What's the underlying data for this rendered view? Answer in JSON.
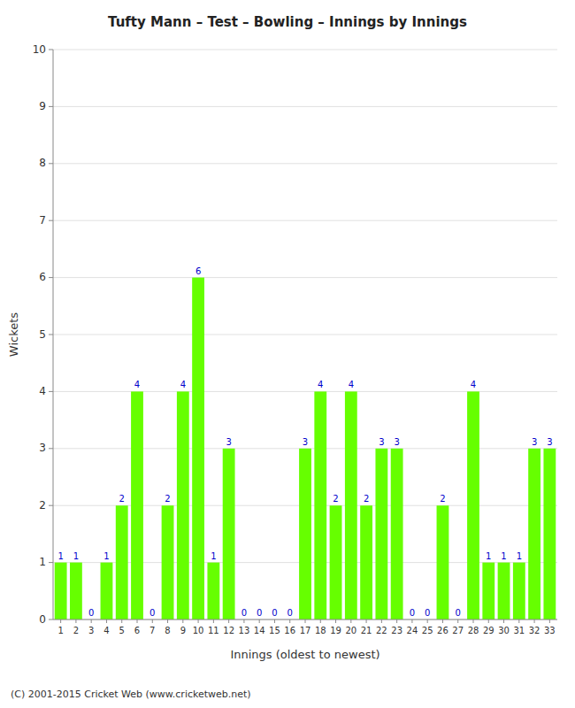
{
  "chart_data": {
    "type": "bar",
    "title": "Tufty Mann – Test – Bowling – Innings by Innings",
    "x_label": "Innings (oldest to newest)",
    "y_label": "Wickets",
    "footer": "(C) 2001-2015 Cricket Web (www.cricketweb.net)",
    "categories": [
      1,
      2,
      3,
      4,
      5,
      6,
      7,
      8,
      9,
      10,
      11,
      12,
      13,
      14,
      15,
      16,
      17,
      18,
      19,
      20,
      21,
      22,
      23,
      24,
      25,
      26,
      27,
      28,
      29,
      30,
      31,
      32,
      33
    ],
    "values": [
      1,
      1,
      0,
      1,
      2,
      4,
      0,
      2,
      4,
      6,
      1,
      3,
      0,
      0,
      0,
      0,
      3,
      4,
      2,
      4,
      2,
      3,
      3,
      0,
      0,
      2,
      0,
      4,
      1,
      1,
      1,
      3,
      3
    ],
    "color": "#66ff00",
    "ylim": [
      0,
      10
    ],
    "yticks": [
      0,
      1,
      2,
      3,
      4,
      5,
      6,
      7,
      8,
      9,
      10
    ],
    "grid": true,
    "data_labels": true
  }
}
